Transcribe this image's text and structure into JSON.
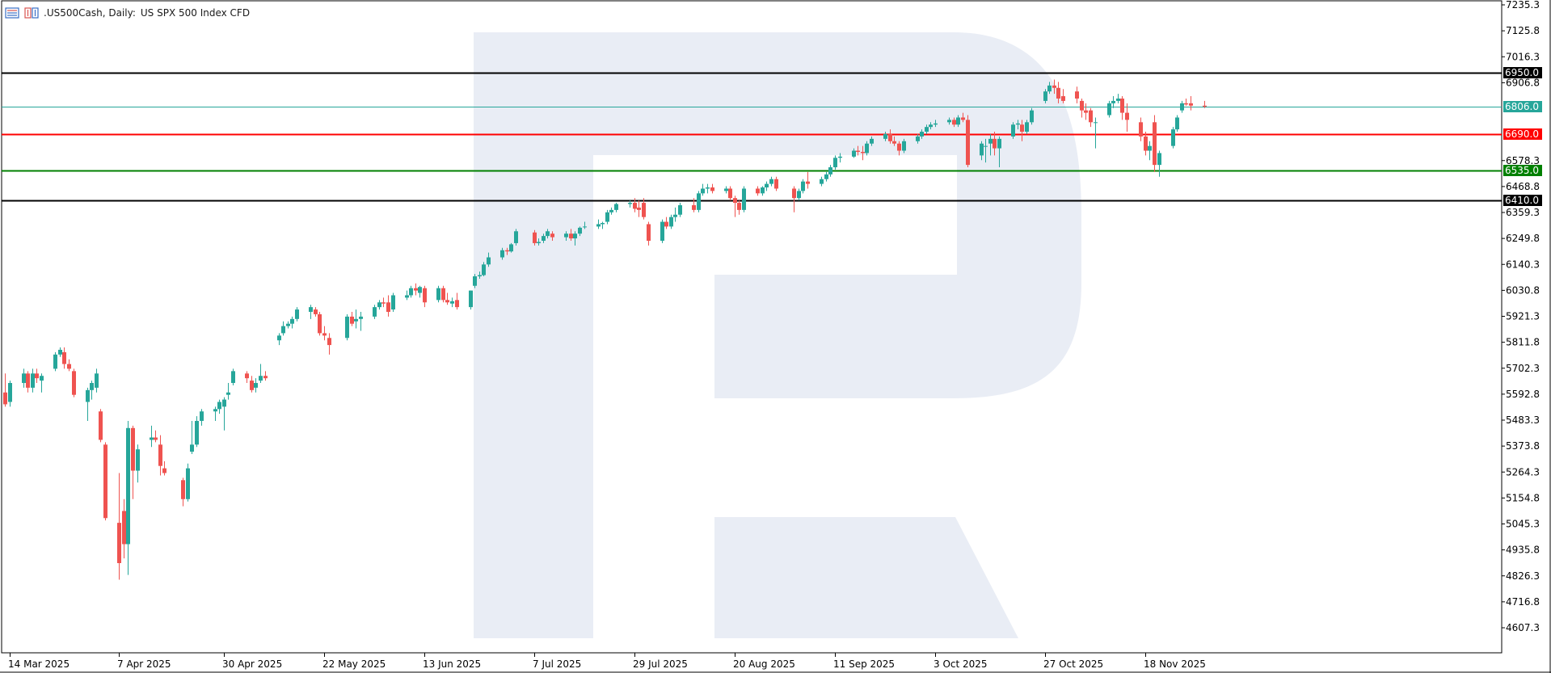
{
  "header": {
    "symbol": ".US500Cash, Daily:",
    "description": "US SPX 500 Index CFD"
  },
  "colors": {
    "bull": "#26a69a",
    "bear": "#ef5350",
    "grid_axis": "#000000",
    "current_price": "#26a69a",
    "resistance_black": "#000000",
    "support_red": "#ff0000",
    "support_green": "#008000",
    "watermark": "#e9edf5"
  },
  "price_axis": {
    "ticks": [
      "7235.3",
      "7125.8",
      "7016.3",
      "6906.8",
      "6578.3",
      "6468.8",
      "6359.3",
      "6249.8",
      "6140.3",
      "6030.8",
      "5921.3",
      "5811.8",
      "5702.3",
      "5592.8",
      "5483.3",
      "5373.8",
      "5264.3",
      "5154.8",
      "5045.3",
      "4935.8",
      "4826.3",
      "4716.8",
      "4607.3"
    ]
  },
  "time_axis": {
    "labels": [
      "14 Mar 2025",
      "7 Apr 2025",
      "30 Apr 2025",
      "22 May 2025",
      "13 Jun 2025",
      "7 Jul 2025",
      "29 Jul 2025",
      "20 Aug 2025",
      "11 Sep 2025",
      "3 Oct 2025",
      "27 Oct 2025",
      "18 Nov 2025"
    ]
  },
  "levels": [
    {
      "label": "6950.0",
      "value": 6950.0,
      "color": "#000000",
      "box": "#000000"
    },
    {
      "label": "6806.0",
      "value": 6806.0,
      "color": "#26a69a",
      "box": "#26a69a"
    },
    {
      "label": "6690.0",
      "value": 6690.0,
      "color": "#ff0000",
      "box": "#ff0000"
    },
    {
      "label": "6535.0",
      "value": 6535.0,
      "color": "#008000",
      "box": "#008000"
    },
    {
      "label": "6410.0",
      "value": 6410.0,
      "color": "#000000",
      "box": "#000000"
    }
  ],
  "chart_data": {
    "type": "candlestick",
    "title": ".US500Cash, Daily: US SPX 500 Index CFD",
    "ylim": [
      4500.0,
      7250.0
    ],
    "x_range": [
      "2025-03-13",
      "2025-11-27"
    ],
    "candles": [
      [
        "2025-03-13",
        5600,
        5680,
        5540,
        5550
      ],
      [
        "2025-03-14",
        5560,
        5650,
        5540,
        5640
      ],
      [
        "2025-03-17",
        5640,
        5700,
        5620,
        5680
      ],
      [
        "2025-03-18",
        5680,
        5690,
        5600,
        5620
      ],
      [
        "2025-03-19",
        5620,
        5700,
        5600,
        5680
      ],
      [
        "2025-03-20",
        5680,
        5700,
        5640,
        5660
      ],
      [
        "2025-03-21",
        5650,
        5680,
        5600,
        5670
      ],
      [
        "2025-03-24",
        5700,
        5770,
        5690,
        5760
      ],
      [
        "2025-03-25",
        5760,
        5790,
        5750,
        5780
      ],
      [
        "2025-03-26",
        5770,
        5790,
        5700,
        5720
      ],
      [
        "2025-03-27",
        5720,
        5740,
        5690,
        5700
      ],
      [
        "2025-03-28",
        5690,
        5700,
        5580,
        5590
      ],
      [
        "2025-03-31",
        5560,
        5620,
        5480,
        5610
      ],
      [
        "2025-04-01",
        5610,
        5650,
        5570,
        5640
      ],
      [
        "2025-04-02",
        5620,
        5700,
        5600,
        5680
      ],
      [
        "2025-04-03",
        5520,
        5530,
        5390,
        5400
      ],
      [
        "2025-04-04",
        5380,
        5390,
        5060,
        5070
      ],
      [
        "2025-04-07",
        5050,
        5260,
        4810,
        4880
      ],
      [
        "2025-04-08",
        5100,
        5150,
        4900,
        4960
      ],
      [
        "2025-04-09",
        4960,
        5480,
        4830,
        5450
      ],
      [
        "2025-04-10",
        5450,
        5460,
        5150,
        5270
      ],
      [
        "2025-04-11",
        5270,
        5380,
        5220,
        5360
      ],
      [
        "2025-04-14",
        5400,
        5460,
        5370,
        5410
      ],
      [
        "2025-04-15",
        5410,
        5440,
        5390,
        5400
      ],
      [
        "2025-04-16",
        5380,
        5420,
        5250,
        5290
      ],
      [
        "2025-04-17",
        5280,
        5310,
        5250,
        5260
      ],
      [
        "2025-04-21",
        5230,
        5240,
        5120,
        5150
      ],
      [
        "2025-04-22",
        5150,
        5300,
        5140,
        5280
      ],
      [
        "2025-04-23",
        5350,
        5480,
        5340,
        5380
      ],
      [
        "2025-04-24",
        5380,
        5500,
        5370,
        5480
      ],
      [
        "2025-04-25",
        5480,
        5530,
        5460,
        5520
      ],
      [
        "2025-04-28",
        5520,
        5540,
        5480,
        5530
      ],
      [
        "2025-04-29",
        5530,
        5570,
        5510,
        5560
      ],
      [
        "2025-04-30",
        5540,
        5580,
        5440,
        5570
      ],
      [
        "2025-05-01",
        5590,
        5640,
        5570,
        5600
      ],
      [
        "2025-05-02",
        5640,
        5700,
        5630,
        5690
      ],
      [
        "2025-05-05",
        5680,
        5690,
        5640,
        5660
      ],
      [
        "2025-05-06",
        5650,
        5670,
        5600,
        5610
      ],
      [
        "2025-05-07",
        5620,
        5660,
        5600,
        5640
      ],
      [
        "2025-05-08",
        5650,
        5720,
        5640,
        5670
      ],
      [
        "2025-05-09",
        5670,
        5690,
        5650,
        5660
      ],
      [
        "2025-05-12",
        5820,
        5850,
        5800,
        5840
      ],
      [
        "2025-05-13",
        5850,
        5900,
        5840,
        5880
      ],
      [
        "2025-05-14",
        5880,
        5900,
        5870,
        5890
      ],
      [
        "2025-05-15",
        5890,
        5920,
        5870,
        5910
      ],
      [
        "2025-05-16",
        5910,
        5960,
        5900,
        5950
      ],
      [
        "2025-05-19",
        5940,
        5970,
        5910,
        5960
      ],
      [
        "2025-05-20",
        5950,
        5960,
        5920,
        5930
      ],
      [
        "2025-05-21",
        5930,
        5940,
        5840,
        5850
      ],
      [
        "2025-05-22",
        5850,
        5880,
        5820,
        5840
      ],
      [
        "2025-05-23",
        5830,
        5850,
        5760,
        5800
      ],
      [
        "2025-05-27",
        5830,
        5930,
        5820,
        5920
      ],
      [
        "2025-05-28",
        5920,
        5940,
        5880,
        5890
      ],
      [
        "2025-05-29",
        5900,
        5950,
        5870,
        5910
      ],
      [
        "2025-05-30",
        5910,
        5940,
        5860,
        5920
      ],
      [
        "2025-06-02",
        5920,
        5970,
        5910,
        5960
      ],
      [
        "2025-06-03",
        5960,
        5990,
        5950,
        5980
      ],
      [
        "2025-06-04",
        5980,
        6000,
        5960,
        5975
      ],
      [
        "2025-06-05",
        5980,
        6010,
        5920,
        5940
      ],
      [
        "2025-06-06",
        5950,
        6020,
        5940,
        6010
      ],
      [
        "2025-06-09",
        6000,
        6030,
        5990,
        6010
      ],
      [
        "2025-06-10",
        6010,
        6050,
        6000,
        6040
      ],
      [
        "2025-06-11",
        6040,
        6060,
        6010,
        6030
      ],
      [
        "2025-06-12",
        6020,
        6050,
        6000,
        6045
      ],
      [
        "2025-06-13",
        6040,
        6050,
        5960,
        5980
      ],
      [
        "2025-06-16",
        5990,
        6050,
        5980,
        6040
      ],
      [
        "2025-06-17",
        6040,
        6050,
        5980,
        5990
      ],
      [
        "2025-06-18",
        5990,
        6020,
        5970,
        5980
      ],
      [
        "2025-06-19",
        5975,
        6000,
        5960,
        5985
      ],
      [
        "2025-06-20",
        5990,
        6020,
        5950,
        5960
      ],
      [
        "2025-06-23",
        5960,
        6030,
        5950,
        6030
      ],
      [
        "2025-06-24",
        6050,
        6100,
        6040,
        6090
      ],
      [
        "2025-06-25",
        6090,
        6110,
        6080,
        6095
      ],
      [
        "2025-06-26",
        6095,
        6150,
        6090,
        6140
      ],
      [
        "2025-06-27",
        6140,
        6190,
        6130,
        6170
      ],
      [
        "2025-06-30",
        6170,
        6210,
        6160,
        6200
      ],
      [
        "2025-07-01",
        6200,
        6210,
        6180,
        6195
      ],
      [
        "2025-07-02",
        6195,
        6230,
        6190,
        6225
      ],
      [
        "2025-07-03",
        6230,
        6290,
        6220,
        6280
      ],
      [
        "2025-07-07",
        6275,
        6285,
        6220,
        6230
      ],
      [
        "2025-07-08",
        6230,
        6250,
        6220,
        6235
      ],
      [
        "2025-07-09",
        6240,
        6270,
        6230,
        6260
      ],
      [
        "2025-07-10",
        6260,
        6290,
        6250,
        6280
      ],
      [
        "2025-07-11",
        6270,
        6280,
        6240,
        6255
      ],
      [
        "2025-07-14",
        6255,
        6280,
        6240,
        6270
      ],
      [
        "2025-07-15",
        6270,
        6290,
        6240,
        6250
      ],
      [
        "2025-07-16",
        6250,
        6280,
        6220,
        6270
      ],
      [
        "2025-07-17",
        6270,
        6300,
        6260,
        6295
      ],
      [
        "2025-07-18",
        6300,
        6320,
        6290,
        6300
      ],
      [
        "2025-07-21",
        6300,
        6330,
        6290,
        6310
      ],
      [
        "2025-07-22",
        6310,
        6320,
        6290,
        6315
      ],
      [
        "2025-07-23",
        6320,
        6370,
        6310,
        6360
      ],
      [
        "2025-07-24",
        6360,
        6380,
        6350,
        6370
      ],
      [
        "2025-07-25",
        6370,
        6400,
        6360,
        6395
      ],
      [
        "2025-07-28",
        6395,
        6410,
        6380,
        6400
      ],
      [
        "2025-07-29",
        6400,
        6420,
        6360,
        6375
      ],
      [
        "2025-07-30",
        6380,
        6410,
        6340,
        6370
      ],
      [
        "2025-07-31",
        6400,
        6420,
        6330,
        6340
      ],
      [
        "2025-08-01",
        6310,
        6320,
        6220,
        6240
      ],
      [
        "2025-08-04",
        6240,
        6330,
        6230,
        6320
      ],
      [
        "2025-08-05",
        6320,
        6340,
        6290,
        6300
      ],
      [
        "2025-08-06",
        6300,
        6350,
        6290,
        6340
      ],
      [
        "2025-08-07",
        6340,
        6380,
        6320,
        6350
      ],
      [
        "2025-08-08",
        6350,
        6400,
        6340,
        6390
      ],
      [
        "2025-08-11",
        6390,
        6420,
        6360,
        6370
      ],
      [
        "2025-08-12",
        6370,
        6450,
        6360,
        6440
      ],
      [
        "2025-08-13",
        6440,
        6480,
        6430,
        6460
      ],
      [
        "2025-08-14",
        6460,
        6480,
        6440,
        6465
      ],
      [
        "2025-08-15",
        6465,
        6480,
        6440,
        6450
      ],
      [
        "2025-08-18",
        6450,
        6470,
        6440,
        6460
      ],
      [
        "2025-08-19",
        6460,
        6470,
        6410,
        6420
      ],
      [
        "2025-08-20",
        6420,
        6430,
        6340,
        6400
      ],
      [
        "2025-08-21",
        6400,
        6410,
        6350,
        6370
      ],
      [
        "2025-08-22",
        6370,
        6470,
        6360,
        6460
      ],
      [
        "2025-08-25",
        6460,
        6470,
        6430,
        6440
      ],
      [
        "2025-08-26",
        6440,
        6470,
        6430,
        6465
      ],
      [
        "2025-08-27",
        6465,
        6490,
        6450,
        6480
      ],
      [
        "2025-08-28",
        6480,
        6510,
        6470,
        6500
      ],
      [
        "2025-08-29",
        6500,
        6510,
        6450,
        6460
      ],
      [
        "2025-09-02",
        6460,
        6470,
        6360,
        6420
      ],
      [
        "2025-09-03",
        6420,
        6460,
        6410,
        6450
      ],
      [
        "2025-09-04",
        6450,
        6500,
        6440,
        6490
      ],
      [
        "2025-09-05",
        6490,
        6530,
        6460,
        6480
      ],
      [
        "2025-09-08",
        6480,
        6510,
        6470,
        6500
      ],
      [
        "2025-09-09",
        6500,
        6530,
        6490,
        6520
      ],
      [
        "2025-09-10",
        6520,
        6560,
        6510,
        6550
      ],
      [
        "2025-09-11",
        6550,
        6600,
        6540,
        6590
      ],
      [
        "2025-09-12",
        6590,
        6610,
        6570,
        6595
      ],
      [
        "2025-09-15",
        6595,
        6630,
        6590,
        6620
      ],
      [
        "2025-09-16",
        6620,
        6640,
        6600,
        6615
      ],
      [
        "2025-09-17",
        6615,
        6640,
        6580,
        6610
      ],
      [
        "2025-09-18",
        6610,
        6660,
        6600,
        6650
      ],
      [
        "2025-09-19",
        6650,
        6680,
        6640,
        6670
      ],
      [
        "2025-09-22",
        6670,
        6700,
        6660,
        6690
      ],
      [
        "2025-09-23",
        6690,
        6710,
        6650,
        6660
      ],
      [
        "2025-09-24",
        6660,
        6680,
        6640,
        6650
      ],
      [
        "2025-09-25",
        6650,
        6660,
        6600,
        6620
      ],
      [
        "2025-09-26",
        6620,
        6670,
        6610,
        6660
      ],
      [
        "2025-09-29",
        6660,
        6690,
        6650,
        6680
      ],
      [
        "2025-09-30",
        6680,
        6710,
        6670,
        6700
      ],
      [
        "2025-10-01",
        6700,
        6730,
        6690,
        6720
      ],
      [
        "2025-10-02",
        6720,
        6740,
        6710,
        6730
      ],
      [
        "2025-10-03",
        6730,
        6750,
        6720,
        6735
      ],
      [
        "2025-10-06",
        6740,
        6760,
        6730,
        6750
      ],
      [
        "2025-10-07",
        6750,
        6760,
        6720,
        6730
      ],
      [
        "2025-10-08",
        6730,
        6770,
        6720,
        6760
      ],
      [
        "2025-10-09",
        6760,
        6780,
        6740,
        6750
      ],
      [
        "2025-10-10",
        6750,
        6770,
        6550,
        6560
      ],
      [
        "2025-10-13",
        6600,
        6660,
        6580,
        6650
      ],
      [
        "2025-10-14",
        6640,
        6670,
        6570,
        6640
      ],
      [
        "2025-10-15",
        6650,
        6690,
        6600,
        6670
      ],
      [
        "2025-10-16",
        6670,
        6700,
        6600,
        6630
      ],
      [
        "2025-10-17",
        6630,
        6680,
        6550,
        6670
      ],
      [
        "2025-10-20",
        6680,
        6740,
        6670,
        6730
      ],
      [
        "2025-10-21",
        6730,
        6750,
        6710,
        6735
      ],
      [
        "2025-10-22",
        6730,
        6750,
        6660,
        6700
      ],
      [
        "2025-10-23",
        6700,
        6750,
        6690,
        6740
      ],
      [
        "2025-10-24",
        6740,
        6800,
        6730,
        6790
      ],
      [
        "2025-10-27",
        6830,
        6880,
        6820,
        6870
      ],
      [
        "2025-10-28",
        6870,
        6910,
        6860,
        6895
      ],
      [
        "2025-10-29",
        6895,
        6920,
        6860,
        6885
      ],
      [
        "2025-10-30",
        6885,
        6910,
        6820,
        6840
      ],
      [
        "2025-10-31",
        6850,
        6880,
        6820,
        6830
      ],
      [
        "2025-11-03",
        6870,
        6890,
        6820,
        6840
      ],
      [
        "2025-11-04",
        6830,
        6840,
        6760,
        6790
      ],
      [
        "2025-11-05",
        6790,
        6820,
        6750,
        6780
      ],
      [
        "2025-11-06",
        6790,
        6800,
        6720,
        6740
      ],
      [
        "2025-11-07",
        6740,
        6760,
        6630,
        6740
      ],
      [
        "2025-11-10",
        6770,
        6830,
        6760,
        6820
      ],
      [
        "2025-11-11",
        6820,
        6850,
        6800,
        6830
      ],
      [
        "2025-11-12",
        6830,
        6860,
        6820,
        6840
      ],
      [
        "2025-11-13",
        6840,
        6850,
        6750,
        6780
      ],
      [
        "2025-11-14",
        6780,
        6820,
        6700,
        6750
      ],
      [
        "2025-11-17",
        6740,
        6760,
        6660,
        6680
      ],
      [
        "2025-11-18",
        6680,
        6700,
        6600,
        6620
      ],
      [
        "2025-11-19",
        6620,
        6660,
        6580,
        6640
      ],
      [
        "2025-11-20",
        6740,
        6770,
        6530,
        6560
      ],
      [
        "2025-11-21",
        6560,
        6620,
        6510,
        6610
      ],
      [
        "2025-11-24",
        6640,
        6720,
        6630,
        6710
      ],
      [
        "2025-11-25",
        6710,
        6770,
        6700,
        6760
      ],
      [
        "2025-11-26",
        6790,
        6830,
        6780,
        6820
      ],
      [
        "2025-11-27",
        6820,
        6840,
        6810,
        6815
      ],
      [
        "2025-11-28",
        6820,
        6850,
        6790,
        6810
      ],
      [
        "2025-12-01",
        6810,
        6830,
        6800,
        6806
      ]
    ]
  }
}
